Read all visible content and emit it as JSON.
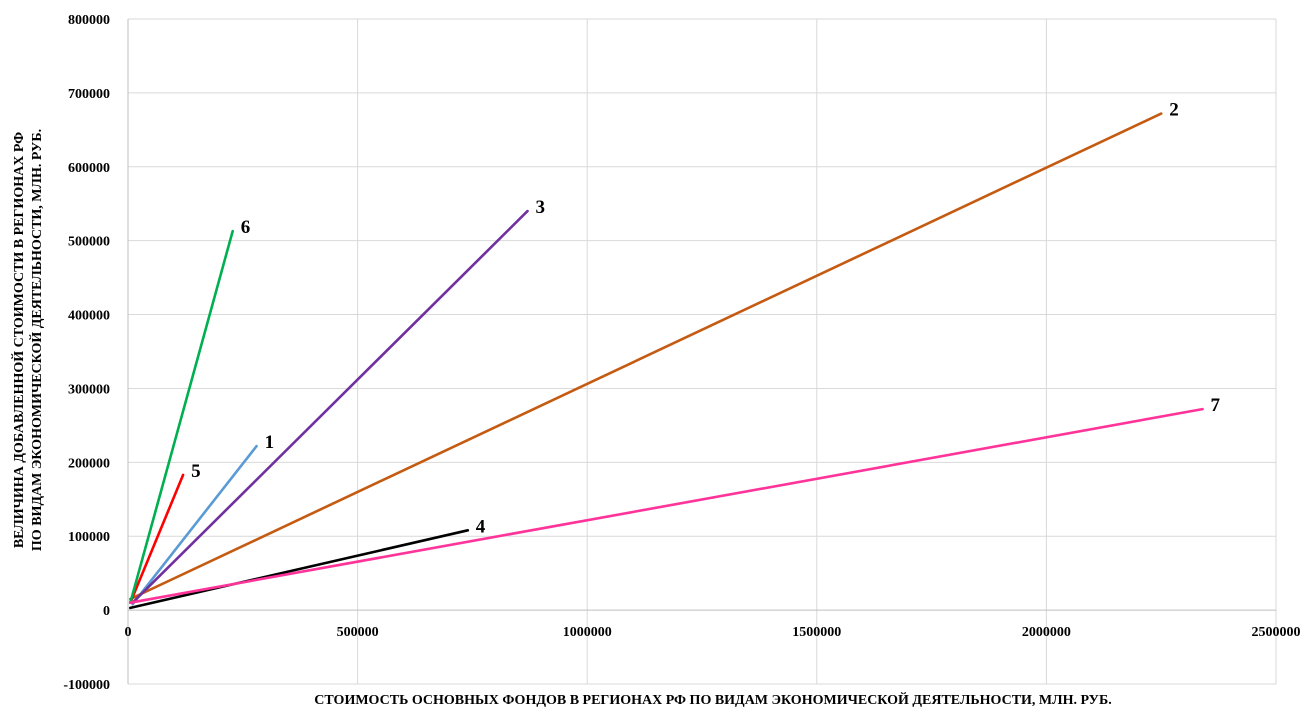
{
  "chart_data": {
    "type": "line",
    "title": "",
    "xlabel": "СТОИМОСТЬ ОСНОВНЫХ ФОНДОВ В РЕГИОНАХ РФ ПО ВИДАМ ЭКОНОМИЧЕСКОЙ ДЕЯТЕЛЬНОСТИ, МЛН. РУБ.",
    "ylabel_lines": [
      "ВЕЛИЧИНА ДОБАВЛЕННОЙ СТОИМОСТИ В РЕГИОНАХ РФ",
      "ПО ВИДАМ ЭКОНОМИЧЕСКОЙ ДЕЯТЕЛЬНОСТИ, МЛН. РУБ."
    ],
    "xlim": [
      0,
      2500000
    ],
    "ylim": [
      -100000,
      800000
    ],
    "x_ticks": [
      "0",
      "500000",
      "1000000",
      "1500000",
      "2000000",
      "2500000"
    ],
    "y_ticks": [
      "800000",
      "700000",
      "600000",
      "500000",
      "400000",
      "300000",
      "200000",
      "100000",
      "0",
      "-100000"
    ],
    "grid": true,
    "series": [
      {
        "name": "1",
        "color": "#5B9BD5",
        "points": [
          [
            10000,
            8000
          ],
          [
            280000,
            222000
          ]
        ]
      },
      {
        "name": "2",
        "color": "#C55A11",
        "points": [
          [
            5000,
            15000
          ],
          [
            2250000,
            672000
          ]
        ]
      },
      {
        "name": "3",
        "color": "#7030A0",
        "points": [
          [
            10000,
            10000
          ],
          [
            870000,
            540000
          ]
        ]
      },
      {
        "name": "4",
        "color": "#000000",
        "points": [
          [
            5000,
            3000
          ],
          [
            740000,
            108000
          ]
        ]
      },
      {
        "name": "5",
        "color": "#FF0000",
        "points": [
          [
            5000,
            10000
          ],
          [
            120000,
            183000
          ]
        ]
      },
      {
        "name": "6",
        "color": "#00B050",
        "points": [
          [
            5000,
            10000
          ],
          [
            228000,
            513000
          ]
        ]
      },
      {
        "name": "7",
        "color": "#FF3399",
        "points": [
          [
            5000,
            10000
          ],
          [
            2340000,
            272000
          ]
        ]
      }
    ]
  }
}
